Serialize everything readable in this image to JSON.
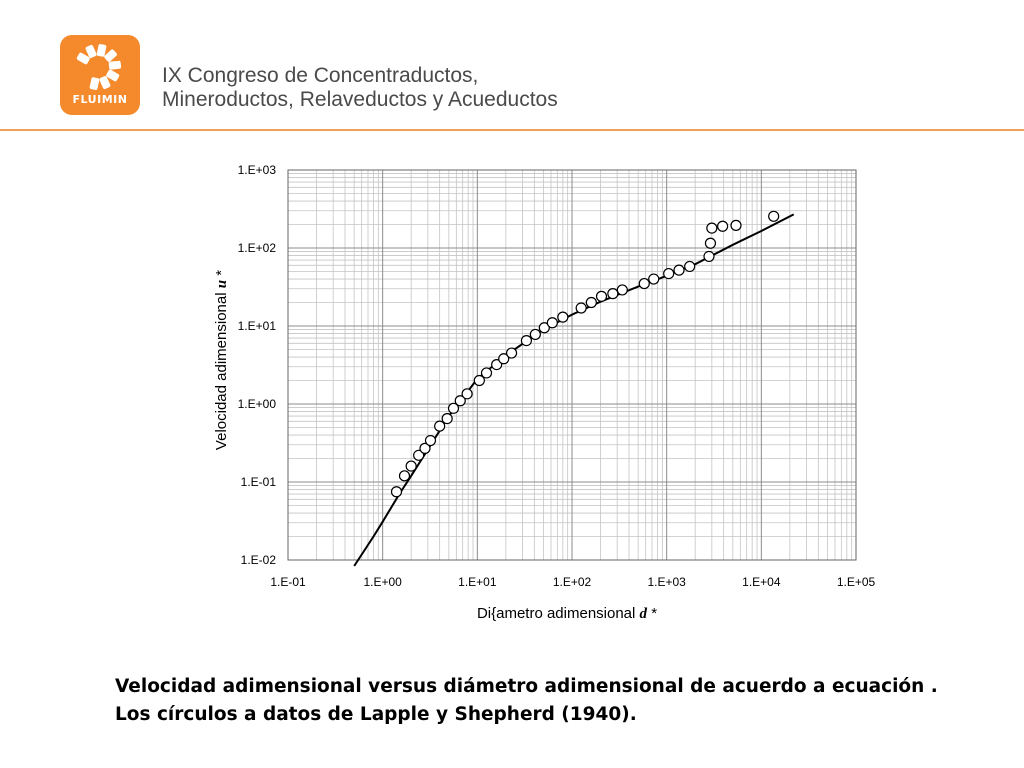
{
  "header": {
    "logo_text": "FLUIMIN",
    "title_lines": [
      "IX Congreso de Concentraductos,",
      "Mineroductos, Relaveductos y Acueductos"
    ],
    "brand_color": "#f58a2c",
    "rule_color": "#f0a058",
    "logo_icon": "fluimin-logo-icon"
  },
  "chart_data": {
    "type": "scatter",
    "scale": "log-log",
    "grid": true,
    "xlabel_text": "Di{ametro adimensional ",
    "xlabel_var": "d",
    "xlabel_suffix": " *",
    "ylabel_text": "Velocidad adimensional ",
    "ylabel_var": "u",
    "ylabel_suffix": " *",
    "xlim": [
      0.1,
      100000
    ],
    "ylim": [
      0.01,
      1000
    ],
    "x_ticks": [
      "1.E-01",
      "1.E+00",
      "1.E+01",
      "1.E+02",
      "1.E+03",
      "1.E+04",
      "1.E+05"
    ],
    "y_ticks": [
      "1.E-02",
      "1.E-01",
      "1.E+00",
      "1.E+01",
      "1.E+02",
      "1.E+03"
    ],
    "series": [
      {
        "marker": "open-circle",
        "points": [
          [
            1.4,
            0.075
          ],
          [
            1.7,
            0.12
          ],
          [
            2.0,
            0.16
          ],
          [
            2.4,
            0.22
          ],
          [
            2.8,
            0.27
          ],
          [
            3.2,
            0.34
          ],
          [
            4.0,
            0.52
          ],
          [
            4.8,
            0.65
          ],
          [
            5.6,
            0.88
          ],
          [
            6.6,
            1.1
          ],
          [
            7.8,
            1.35
          ],
          [
            10.5,
            2.0
          ],
          [
            12.5,
            2.5
          ],
          [
            16,
            3.2
          ],
          [
            19,
            3.8
          ],
          [
            23,
            4.5
          ],
          [
            33,
            6.5
          ],
          [
            41,
            7.8
          ],
          [
            51,
            9.5
          ],
          [
            62,
            11.0
          ],
          [
            80,
            13.0
          ],
          [
            125,
            17.0
          ],
          [
            160,
            20.0
          ],
          [
            205,
            24.0
          ],
          [
            270,
            26.0
          ],
          [
            340,
            29.0
          ],
          [
            580,
            35.0
          ],
          [
            730,
            40.0
          ],
          [
            1050,
            47.0
          ],
          [
            1350,
            52.0
          ],
          [
            1750,
            58.0
          ],
          [
            2800,
            78.0
          ],
          [
            2900,
            115.0
          ],
          [
            3000,
            180.0
          ],
          [
            3900,
            190.0
          ],
          [
            5400,
            195.0
          ],
          [
            13500,
            255.0
          ]
        ]
      },
      {
        "marker": "line",
        "points": [
          [
            0.5,
            0.0081
          ],
          [
            0.8,
            0.02
          ],
          [
            1.0,
            0.031
          ],
          [
            1.5,
            0.07
          ],
          [
            2.0,
            0.12
          ],
          [
            3.0,
            0.26
          ],
          [
            5.0,
            0.7
          ],
          [
            10,
            2.1
          ],
          [
            20,
            4.2
          ],
          [
            50,
            9.0
          ],
          [
            100,
            14.0
          ],
          [
            200,
            20.5
          ],
          [
            500,
            32.0
          ],
          [
            1000,
            44.0
          ],
          [
            2000,
            62.0
          ],
          [
            5000,
            110.0
          ],
          [
            10000,
            165.0
          ],
          [
            22000,
            270.0
          ]
        ]
      }
    ]
  },
  "caption": {
    "line1": "Velocidad adimensional versus diámetro adimensional de acuerdo a ecuación .",
    "line2": "Los círculos a datos de Lapple y Shepherd (1940)."
  }
}
